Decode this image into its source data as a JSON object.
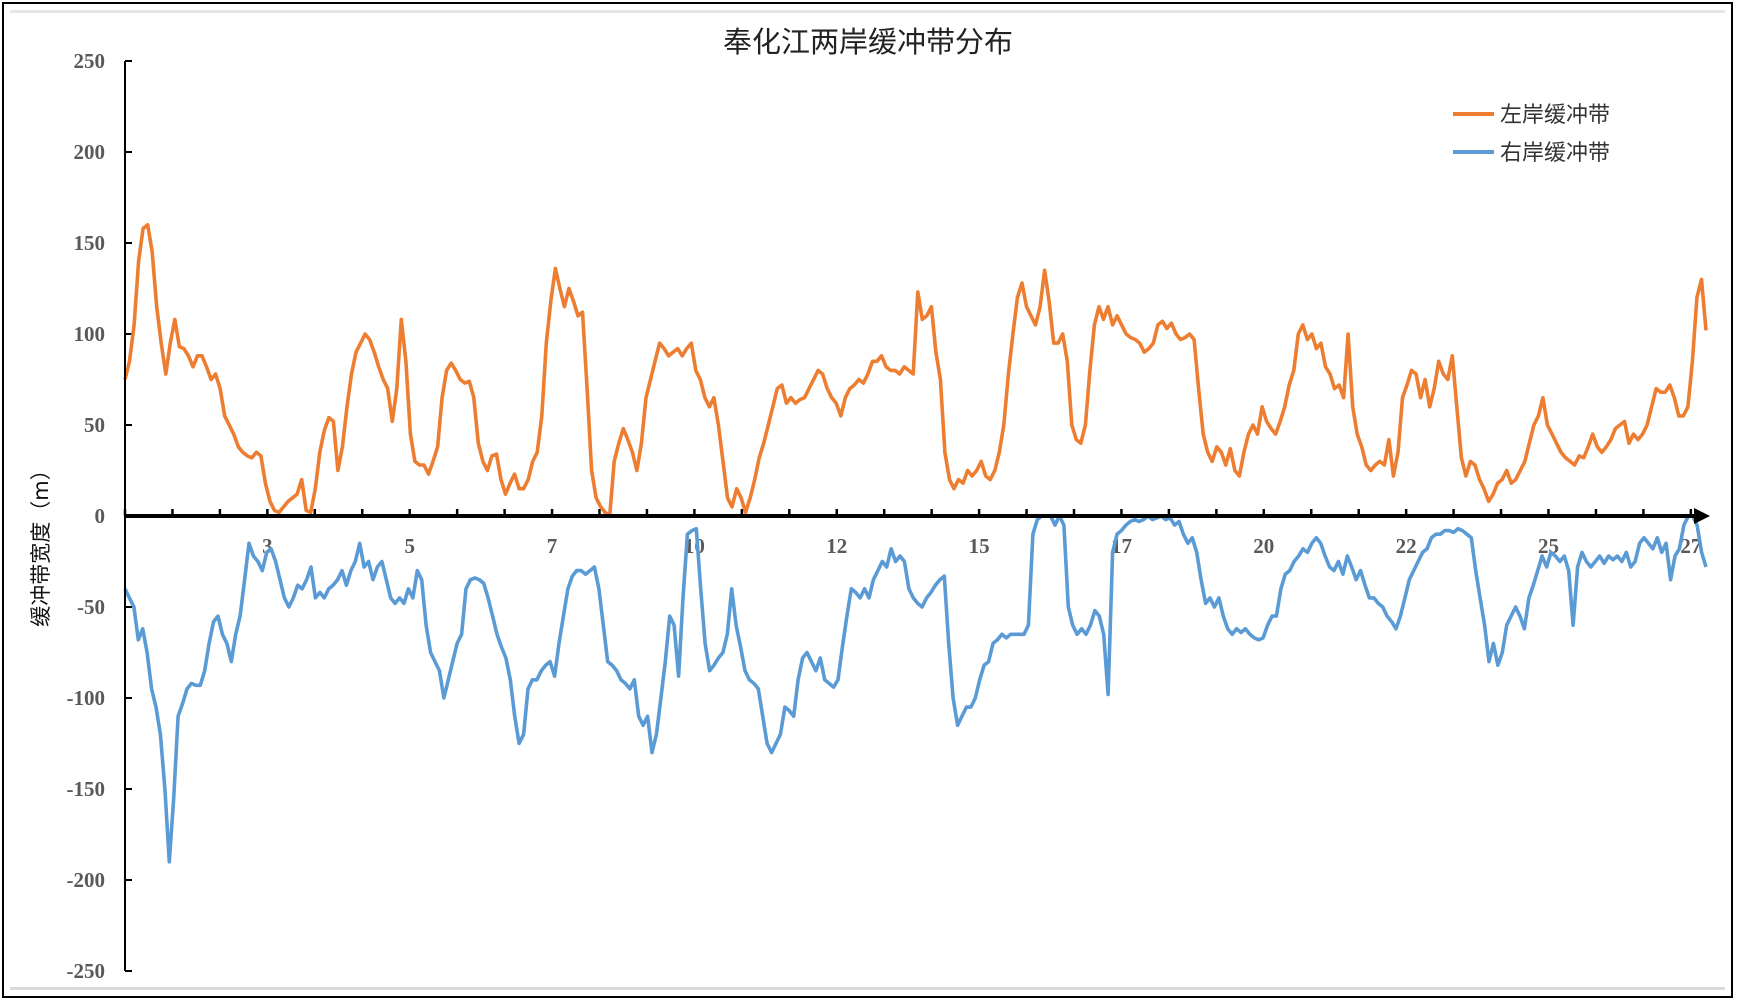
{
  "chart_data": {
    "type": "line",
    "title": "奉化江两岸缓冲带分布",
    "xlabel": "",
    "ylabel": "缓冲带宽度（m）",
    "ylim": [
      -250,
      250
    ],
    "yticks": [
      250,
      200,
      150,
      100,
      50,
      0,
      -50,
      -100,
      -150,
      -200,
      -250
    ],
    "xtick_labels": [
      "3",
      "5",
      "7",
      "10",
      "12",
      "15",
      "17",
      "20",
      "22",
      "25",
      "27"
    ],
    "grid": false,
    "legend_position": "top-right",
    "series": [
      {
        "name": "左岸缓冲带",
        "color": "#ED7D31",
        "values": [
          75,
          85,
          105,
          140,
          158,
          160,
          145,
          115,
          95,
          78,
          95,
          108,
          93,
          92,
          88,
          82,
          88,
          88,
          82,
          75,
          78,
          70,
          55,
          50,
          45,
          38,
          35,
          33,
          32,
          35,
          33,
          18,
          8,
          3,
          2,
          5,
          8,
          10,
          12,
          20,
          3,
          2,
          15,
          35,
          47,
          54,
          52,
          25,
          38,
          60,
          78,
          90,
          95,
          100,
          97,
          90,
          82,
          75,
          70,
          52,
          70,
          108,
          85,
          45,
          30,
          28,
          28,
          23,
          30,
          38,
          65,
          80,
          84,
          80,
          75,
          73,
          74,
          65,
          40,
          30,
          25,
          33,
          34,
          20,
          12,
          18,
          23,
          15,
          15,
          20,
          30,
          35,
          55,
          95,
          118,
          136,
          125,
          115,
          125,
          118,
          110,
          112,
          70,
          25,
          10,
          5,
          2,
          0,
          30,
          40,
          48,
          42,
          35,
          25,
          40,
          65,
          75,
          85,
          95,
          92,
          88,
          90,
          92,
          88,
          92,
          95,
          80,
          75,
          65,
          60,
          65,
          50,
          30,
          10,
          5,
          15,
          10,
          2,
          10,
          20,
          32,
          40,
          50,
          60,
          70,
          72,
          62,
          65,
          62,
          64,
          65,
          70,
          75,
          80,
          78,
          70,
          65,
          62,
          55,
          65,
          70,
          72,
          75,
          73,
          78,
          85,
          85,
          88,
          82,
          80,
          80,
          78,
          82,
          80,
          78,
          123,
          108,
          110,
          115,
          90,
          75,
          35,
          20,
          15,
          20,
          18,
          25,
          22,
          25,
          30,
          22,
          20,
          25,
          35,
          50,
          78,
          100,
          120,
          128,
          115,
          110,
          105,
          115,
          135,
          118,
          95,
          95,
          100,
          85,
          50,
          42,
          40,
          50,
          80,
          105,
          115,
          108,
          115,
          105,
          110,
          105,
          100,
          98,
          97,
          95,
          90,
          92,
          95,
          105,
          107,
          103,
          106,
          100,
          97,
          98,
          100,
          97,
          70,
          45,
          35,
          30,
          38,
          35,
          28,
          37,
          25,
          22,
          35,
          45,
          50,
          45,
          60,
          52,
          48,
          45,
          52,
          60,
          72,
          80,
          100,
          105,
          97,
          100,
          92,
          95,
          82,
          78,
          70,
          72,
          65,
          100,
          60,
          45,
          38,
          28,
          25,
          28,
          30,
          28,
          42,
          22,
          35,
          65,
          72,
          80,
          78,
          65,
          75,
          60,
          70,
          85,
          78,
          75,
          88,
          60,
          32,
          22,
          30,
          28,
          20,
          15,
          8,
          12,
          18,
          20,
          25,
          18,
          20,
          25,
          30,
          40,
          50,
          55,
          65,
          50,
          45,
          40,
          35,
          32,
          30,
          28,
          33,
          32,
          38,
          45,
          38,
          35,
          38,
          42,
          48,
          50,
          52,
          40,
          45,
          42,
          45,
          50,
          60,
          70,
          68,
          68,
          72,
          65,
          55,
          55,
          60,
          85,
          120,
          130,
          102
        ]
      },
      {
        "name": "右岸缓冲带",
        "color": "#5B9BD5",
        "values": [
          -40,
          -45,
          -50,
          -68,
          -62,
          -75,
          -95,
          -105,
          -120,
          -150,
          -190,
          -155,
          -110,
          -103,
          -95,
          -92,
          -93,
          -93,
          -85,
          -70,
          -58,
          -55,
          -65,
          -70,
          -80,
          -65,
          -55,
          -35,
          -15,
          -22,
          -25,
          -30,
          -20,
          -18,
          -25,
          -35,
          -45,
          -50,
          -45,
          -38,
          -40,
          -35,
          -28,
          -45,
          -42,
          -45,
          -40,
          -38,
          -35,
          -30,
          -38,
          -30,
          -25,
          -15,
          -28,
          -25,
          -35,
          -28,
          -25,
          -35,
          -45,
          -48,
          -45,
          -48,
          -40,
          -45,
          -30,
          -35,
          -60,
          -75,
          -80,
          -85,
          -100,
          -90,
          -80,
          -70,
          -65,
          -40,
          -35,
          -34,
          -35,
          -37,
          -45,
          -55,
          -65,
          -72,
          -78,
          -90,
          -110,
          -125,
          -120,
          -95,
          -90,
          -90,
          -85,
          -82,
          -80,
          -88,
          -70,
          -55,
          -40,
          -33,
          -30,
          -30,
          -32,
          -30,
          -28,
          -40,
          -60,
          -80,
          -82,
          -85,
          -90,
          -92,
          -95,
          -90,
          -110,
          -115,
          -110,
          -130,
          -120,
          -100,
          -80,
          -55,
          -60,
          -88,
          -45,
          -10,
          -8,
          -7,
          -40,
          -70,
          -85,
          -82,
          -78,
          -75,
          -65,
          -40,
          -60,
          -72,
          -85,
          -90,
          -92,
          -95,
          -110,
          -125,
          -130,
          -125,
          -120,
          -105,
          -107,
          -110,
          -90,
          -78,
          -75,
          -80,
          -85,
          -78,
          -90,
          -92,
          -94,
          -90,
          -72,
          -55,
          -40,
          -42,
          -45,
          -40,
          -45,
          -35,
          -30,
          -25,
          -28,
          -18,
          -25,
          -22,
          -25,
          -40,
          -45,
          -48,
          -50,
          -45,
          -42,
          -38,
          -35,
          -33,
          -70,
          -100,
          -115,
          -110,
          -105,
          -105,
          -100,
          -90,
          -82,
          -80,
          -70,
          -68,
          -65,
          -67,
          -65,
          -65,
          -65,
          -65,
          -60,
          -10,
          -2,
          0,
          0,
          0,
          -5,
          0,
          -5,
          -50,
          -60,
          -65,
          -62,
          -65,
          -60,
          -52,
          -55,
          -65,
          -98,
          -20,
          -10,
          -8,
          -5,
          -3,
          -2,
          -3,
          -2,
          0,
          -2,
          -1,
          0,
          -2,
          -1,
          -5,
          -3,
          -10,
          -15,
          -12,
          -20,
          -35,
          -48,
          -45,
          -50,
          -45,
          -55,
          -62,
          -65,
          -62,
          -64,
          -62,
          -65,
          -67,
          -68,
          -67,
          -60,
          -55,
          -55,
          -40,
          -32,
          -30,
          -25,
          -22,
          -18,
          -20,
          -15,
          -12,
          -15,
          -22,
          -28,
          -30,
          -25,
          -32,
          -22,
          -28,
          -35,
          -30,
          -38,
          -45,
          -45,
          -48,
          -50,
          -55,
          -58,
          -62,
          -55,
          -45,
          -35,
          -30,
          -25,
          -20,
          -18,
          -12,
          -10,
          -10,
          -8,
          -8,
          -9,
          -7,
          -8,
          -10,
          -12,
          -30,
          -45,
          -60,
          -80,
          -70,
          -82,
          -75,
          -60,
          -55,
          -50,
          -55,
          -62,
          -45,
          -38,
          -30,
          -22,
          -28,
          -20,
          -22,
          -25,
          -22,
          -30,
          -60,
          -28,
          -20,
          -25,
          -28,
          -25,
          -22,
          -26,
          -22,
          -24,
          -22,
          -25,
          -20,
          -28,
          -25,
          -15,
          -12,
          -15,
          -18,
          -12,
          -20,
          -15,
          -35,
          -22,
          -18,
          -5,
          0,
          0,
          -5,
          -20,
          -28
        ]
      }
    ]
  }
}
